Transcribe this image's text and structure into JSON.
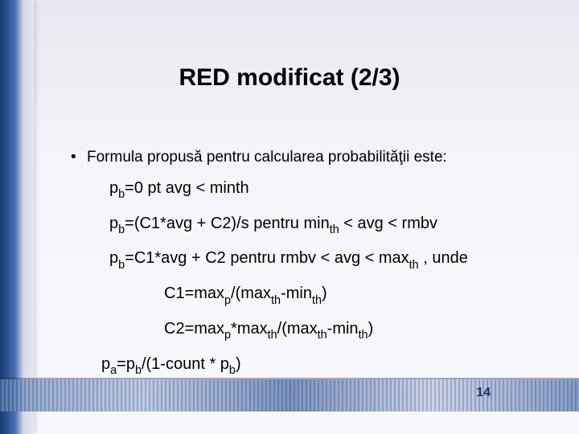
{
  "title": "RED modificat (2/3)",
  "bullet": "Formula propusă pentru calcularea probabilităţii este:",
  "formulas": {
    "line1_pre": "p",
    "line1_sub": "b",
    "line1_post": "=0 pt avg < minth",
    "line2_pre": "p",
    "line2_sub": "b",
    "line2_mid": "=(C1*avg + C2)/s pentru  min",
    "line2_sub2": "th",
    "line2_post": " < avg < rmbv",
    "line3_pre": "p",
    "line3_sub": "b",
    "line3_mid": "=C1*avg + C2 pentru rmbv < avg < max",
    "line3_sub2": "th",
    "line3_post": " , unde",
    "line4_pre": "C1=max",
    "line4_sub1": "p",
    "line4_mid": "/(max",
    "line4_sub2": "th",
    "line4_mid2": "-min",
    "line4_sub3": "th",
    "line4_post": ")",
    "line5_pre": "C2=max",
    "line5_sub1": "p",
    "line5_mid": "*max",
    "line5_sub2": "th",
    "line5_mid2": "/(max",
    "line5_sub3": "th",
    "line5_mid3": "-min",
    "line5_sub4": "th",
    "line5_post": ")",
    "line6_pre": "p",
    "line6_sub1": "a",
    "line6_mid": "=p",
    "line6_sub2": "b",
    "line6_mid2": "/(1-count * p",
    "line6_sub3": "b",
    "line6_post": ")"
  },
  "pageNumber": "14"
}
